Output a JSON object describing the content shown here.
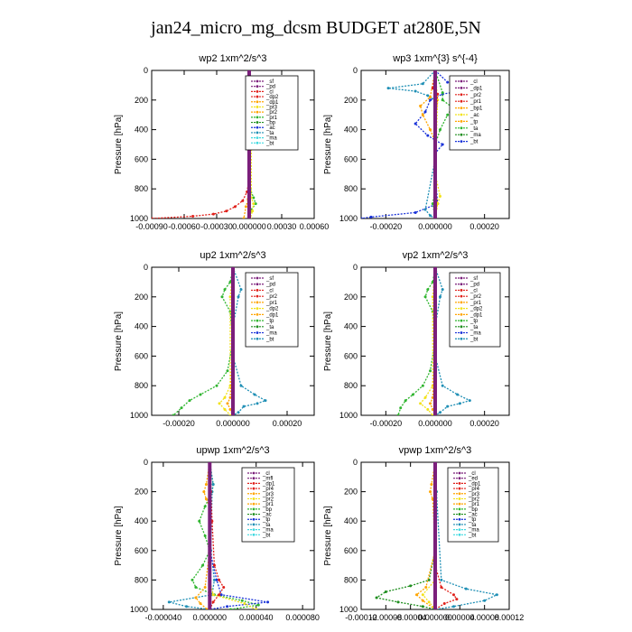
{
  "title": "jan24_micro_mg_dcsm  BUDGET at280E,5N",
  "colors": {
    "purple": "#7b1f7b",
    "red": "#e0201a",
    "orange": "#ffa500",
    "yellow": "#f2e21a",
    "green": "#2fb52f",
    "darkgreen": "#1f8f1f",
    "blue": "#1a33d9",
    "teal": "#1f8fb5",
    "cyan": "#40d9e0"
  },
  "chart_data": [
    {
      "type": "line",
      "title": "wp2  1xm^2/s^3",
      "ylabel": "Pressure [hPa]",
      "ylim": [
        0,
        1000
      ],
      "xlim": [
        -0.0009,
        0.0006
      ],
      "xticks": [
        "-0.00090",
        "-0.00060",
        "-0.00030",
        "0.000000",
        "0.00030",
        "0.00060"
      ],
      "yticks": [
        "0",
        "200",
        "400",
        "600",
        "800",
        "1000"
      ],
      "legend": [
        "_sf",
        "_pd",
        "_cl",
        "_dp2",
        "_dp1",
        "_pr3",
        "_pr2",
        "_pr1",
        "_bp",
        "_ac",
        "_ta",
        "_ma",
        "_bt"
      ],
      "series": [
        {
          "name": "_cl",
          "color": "#e0201a",
          "p": [
            0,
            100,
            200,
            400,
            600,
            750,
            820,
            880,
            920,
            950,
            970,
            985,
            1000
          ],
          "x": [
            0,
            0,
            0,
            0,
            0,
            -5e-06,
            -2e-05,
            -6e-05,
            -0.00013,
            -0.00021,
            -0.00033,
            -0.00052,
            -0.0009
          ]
        },
        {
          "name": "_bp",
          "color": "#2fb52f",
          "p": [
            0,
            100,
            150,
            200,
            300,
            600,
            800,
            860,
            900,
            940,
            1000
          ],
          "x": [
            0,
            2e-05,
            6e-05,
            3e-05,
            1e-05,
            0,
            1e-05,
            4e-05,
            6e-05,
            2e-05,
            0
          ]
        },
        {
          "name": "_pr1",
          "color": "#f2e21a",
          "p": [
            0,
            200,
            860,
            900,
            950,
            1000
          ],
          "x": [
            0,
            2e-05,
            2e-05,
            4e-05,
            3e-05,
            1e-05
          ]
        },
        {
          "name": "_ac",
          "color": "#ffa500",
          "p": [
            0,
            300,
            870,
            920,
            1000
          ],
          "x": [
            0,
            0,
            -1e-05,
            -3e-05,
            -5e-05
          ]
        },
        {
          "name": "_sf",
          "color": "#7b1f7b",
          "p": [
            0,
            1000
          ],
          "x": [
            0,
            0
          ]
        }
      ]
    },
    {
      "type": "line",
      "title": "wp3  1xm^{3} s^{-4}",
      "ylabel": "Pressure [hPa]",
      "ylim": [
        0,
        1000
      ],
      "xlim": [
        -0.0003,
        0.0003
      ],
      "xticks": [
        "-0.00020",
        "0.000000",
        "0.00020"
      ],
      "yticks": [
        "0",
        "200",
        "400",
        "600",
        "800",
        "1000"
      ],
      "legend": [
        "_cl",
        "_dp1",
        "_pr2",
        "_pr1",
        "_bp1",
        "_ac",
        "_tp",
        "_ta",
        "_ma",
        "_bt"
      ],
      "series": [
        {
          "name": "_tp",
          "color": "#1a33d9",
          "p": [
            0,
            80,
            120,
            140,
            160,
            200,
            280,
            360,
            440,
            500,
            560,
            700,
            900,
            960,
            990,
            1000
          ],
          "x": [
            0,
            5e-05,
            0.00016,
            0.0001,
            3e-05,
            -2e-05,
            -4e-05,
            -8e-05,
            -3e-05,
            3e-05,
            0,
            0,
            1e-05,
            -8e-05,
            -0.00026,
            -0.0003
          ]
        },
        {
          "name": "_ta",
          "color": "#1f8fb5",
          "p": [
            0,
            90,
            120,
            140,
            170,
            200,
            600,
            940,
            980,
            1000
          ],
          "x": [
            0,
            -5e-05,
            -0.00019,
            -8e-05,
            -3e-05,
            0,
            0,
            -4e-05,
            -2e-05,
            0
          ]
        },
        {
          "name": "_ac",
          "color": "#2fb52f",
          "p": [
            0,
            150,
            200,
            250,
            300,
            400,
            500,
            600,
            800,
            900,
            1000
          ],
          "x": [
            0,
            3e-05,
            3e-05,
            7e-05,
            5e-05,
            2e-05,
            0,
            0,
            0,
            -1e-05,
            0
          ]
        },
        {
          "name": "_pr1",
          "color": "#ffa500",
          "p": [
            0,
            180,
            240,
            300,
            400,
            480,
            560,
            800,
            900,
            1000
          ],
          "x": [
            0,
            -2e-05,
            -6e-05,
            -5e-05,
            -2e-05,
            0,
            0,
            0,
            1e-05,
            0
          ]
        },
        {
          "name": "_pr2",
          "color": "#f2e21a",
          "p": [
            0,
            200,
            700,
            850,
            900,
            1000
          ],
          "x": [
            0,
            1e-05,
            0,
            2e-05,
            1e-05,
            0
          ]
        },
        {
          "name": "_cl",
          "color": "#e0201a",
          "p": [
            0,
            120,
            160,
            400,
            1000
          ],
          "x": [
            0,
            -1e-05,
            1e-05,
            0,
            0
          ]
        },
        {
          "name": "_dp1",
          "color": "#7b1f7b",
          "p": [
            0,
            1000
          ],
          "x": [
            0,
            0
          ]
        }
      ]
    },
    {
      "type": "line",
      "title": "up2  1xm^2/s^3",
      "ylabel": "Pressure [hPa]",
      "ylim": [
        0,
        1000
      ],
      "xlim": [
        -0.0003,
        0.0003
      ],
      "xticks": [
        "-0.00020",
        "0.000000",
        "0.00020"
      ],
      "yticks": [
        "0",
        "200",
        "400",
        "600",
        "800",
        "1000"
      ],
      "legend": [
        "_sf",
        "_pd",
        "_cl",
        "_pr2",
        "_pr1",
        "_dp2",
        "_dp1",
        "_tp",
        "_ta",
        "_ma",
        "_bt"
      ],
      "series": [
        {
          "name": "_dp2",
          "color": "#2fb52f",
          "p": [
            0,
            100,
            150,
            200,
            300,
            500,
            700,
            800,
            860,
            900,
            950,
            1000
          ],
          "x": [
            0,
            -1e-05,
            -3e-05,
            -4e-05,
            -1e-05,
            0,
            -2e-05,
            -6e-05,
            -0.00012,
            -0.00016,
            -0.00019,
            -0.00022
          ]
        },
        {
          "name": "_ta",
          "color": "#1f8fb5",
          "p": [
            0,
            150,
            200,
            400,
            600,
            800,
            860,
            900,
            920,
            940,
            980,
            1000
          ],
          "x": [
            0,
            3e-05,
            2e-05,
            0,
            0,
            3e-05,
            8e-05,
            0.00012,
            9e-05,
            4e-05,
            2e-05,
            0
          ]
        },
        {
          "name": "_pr1",
          "color": "#f2e21a",
          "p": [
            0,
            200,
            800,
            880,
            920,
            960,
            1000
          ],
          "x": [
            0,
            -1e-05,
            -1e-05,
            -3e-05,
            -5e-05,
            -3e-05,
            -1e-05
          ]
        },
        {
          "name": "_pr2",
          "color": "#ffa500",
          "p": [
            0,
            500,
            880,
            920,
            960,
            1000
          ],
          "x": [
            0,
            0,
            -1e-05,
            -2e-05,
            -1e-05,
            0
          ]
        },
        {
          "name": "_cl",
          "color": "#e0201a",
          "p": [
            0,
            1000
          ],
          "x": [
            0,
            0
          ]
        },
        {
          "name": "_sf",
          "color": "#7b1f7b",
          "p": [
            0,
            1000
          ],
          "x": [
            0,
            0
          ]
        }
      ]
    },
    {
      "type": "line",
      "title": "vp2  1xm^2/s^3",
      "ylabel": "Pressure [hPa]",
      "ylim": [
        0,
        1000
      ],
      "xlim": [
        -0.0003,
        0.0003
      ],
      "xticks": [
        "-0.00020",
        "0.000000",
        "0.00020"
      ],
      "yticks": [
        "0",
        "200",
        "400",
        "600",
        "800",
        "1000"
      ],
      "legend": [
        "_sf",
        "_pd",
        "_cl",
        "_pr2",
        "_pr1",
        "_dp2",
        "_dp1",
        "_tp",
        "_ta",
        "_ma",
        "_bt"
      ],
      "series": [
        {
          "name": "_dp2",
          "color": "#2fb52f",
          "p": [
            0,
            100,
            150,
            200,
            300,
            500,
            700,
            800,
            860,
            900,
            950,
            1000
          ],
          "x": [
            0,
            -1e-05,
            -3e-05,
            -4e-05,
            -1e-05,
            0,
            -2e-05,
            -5e-05,
            -9e-05,
            -0.00012,
            -0.00014,
            -0.00015
          ]
        },
        {
          "name": "_ta",
          "color": "#1f8fb5",
          "p": [
            0,
            150,
            200,
            400,
            600,
            800,
            860,
            900,
            920,
            940,
            980,
            1000
          ],
          "x": [
            0,
            3e-05,
            2e-05,
            0,
            0,
            3e-05,
            9e-05,
            0.00014,
            0.0001,
            5e-05,
            2e-05,
            0
          ]
        },
        {
          "name": "_pr1",
          "color": "#f2e21a",
          "p": [
            0,
            200,
            800,
            880,
            920,
            960,
            1000
          ],
          "x": [
            0,
            -1e-05,
            -1e-05,
            -4e-05,
            -6e-05,
            -3e-05,
            -1e-05
          ]
        },
        {
          "name": "_pr2",
          "color": "#ffa500",
          "p": [
            0,
            500,
            880,
            920,
            960,
            1000
          ],
          "x": [
            0,
            0,
            -1e-05,
            -2e-05,
            -1e-05,
            0
          ]
        },
        {
          "name": "_cl",
          "color": "#e0201a",
          "p": [
            0,
            1000
          ],
          "x": [
            0,
            0
          ]
        },
        {
          "name": "_sf",
          "color": "#7b1f7b",
          "p": [
            0,
            1000
          ],
          "x": [
            0,
            0
          ]
        }
      ]
    },
    {
      "type": "line",
      "title": "upwp  1xm^2/s^3",
      "ylabel": "Pressure [hPa]",
      "ylim": [
        0,
        1000
      ],
      "xlim": [
        -5e-05,
        9e-05
      ],
      "xticks": [
        "-0.000040",
        "0.000000",
        "0.000040",
        "0.000080"
      ],
      "yticks": [
        "0",
        "200",
        "400",
        "600",
        "800",
        "1000"
      ],
      "legend": [
        "_cl",
        "_mfl",
        "_dp1",
        "_pr4",
        "_pr3",
        "_pr2",
        "_pr1",
        "_bp",
        "_ac",
        "_tp",
        "_ta",
        "_ma",
        "_bt"
      ],
      "series": [
        {
          "name": "_bp",
          "color": "#2fb52f",
          "p": [
            0,
            150,
            200,
            300,
            400,
            500,
            600,
            700,
            800,
            850,
            900,
            940,
            970,
            1000
          ],
          "x": [
            0,
            3e-06,
            2e-06,
            -4e-06,
            -9e-06,
            -4e-06,
            0,
            -6e-06,
            -1.5e-05,
            -1.2e-05,
            4e-06,
            2.8e-05,
            4.2e-05,
            1.8e-05
          ]
        },
        {
          "name": "_ta",
          "color": "#1f8fb5",
          "p": [
            0,
            150,
            200,
            600,
            800,
            900,
            950,
            980,
            1000
          ],
          "x": [
            0,
            3e-06,
            2e-06,
            1e-06,
            4e-06,
            2e-06,
            -3.5e-05,
            -2e-05,
            0
          ]
        },
        {
          "name": "_dp1",
          "color": "#1a33d9",
          "p": [
            0,
            600,
            800,
            900,
            950,
            980,
            1000
          ],
          "x": [
            0,
            0,
            6e-06,
            1e-05,
            5e-05,
            1.5e-05,
            0
          ]
        },
        {
          "name": "_pr1",
          "color": "#ffa500",
          "p": [
            0,
            150,
            200,
            250,
            300,
            600,
            850,
            920,
            960,
            1000
          ],
          "x": [
            0,
            -3e-06,
            -5e-06,
            -3e-06,
            0,
            0,
            -4e-06,
            -1.2e-05,
            -8e-06,
            -2e-06
          ]
        },
        {
          "name": "_pr2",
          "color": "#f2e21a",
          "p": [
            0,
            800,
            900,
            960,
            1000
          ],
          "x": [
            0,
            0,
            3e-06,
            3e-05,
            4e-05
          ]
        },
        {
          "name": "_cl",
          "color": "#e0201a",
          "p": [
            0,
            200,
            400,
            700,
            800,
            850,
            900,
            950,
            1000
          ],
          "x": [
            0,
            1e-06,
            2e-06,
            4e-06,
            8e-06,
            1.2e-05,
            8e-06,
            3e-06,
            0
          ]
        },
        {
          "name": "_mfl",
          "color": "#7b1f7b",
          "p": [
            0,
            1000
          ],
          "x": [
            0,
            0
          ]
        }
      ]
    },
    {
      "type": "line",
      "title": "vpwp  1xm^2/s^3",
      "ylabel": "Pressure [hPa]",
      "ylim": [
        0,
        1000
      ],
      "xlim": [
        -0.00012,
        0.00012
      ],
      "xticks": [
        "-0.00012",
        "-0.00008",
        "-0.00004",
        "0.000000",
        "0.00004",
        "0.00008",
        "0.00012"
      ],
      "yticks": [
        "0",
        "200",
        "400",
        "600",
        "800",
        "1000"
      ],
      "legend": [
        "_cl",
        "_ed",
        "_dp1",
        "_pr4",
        "_pr3",
        "_pr2",
        "_pr1",
        "_bp",
        "_ac",
        "_tp",
        "_ta",
        "_ma",
        "_bt"
      ],
      "series": [
        {
          "name": "_bp",
          "color": "#1f8f1f",
          "p": [
            0,
            200,
            600,
            800,
            840,
            880,
            920,
            950,
            980,
            1000
          ],
          "x": [
            0,
            2e-06,
            0,
            -1e-05,
            -4e-05,
            -8e-05,
            -9.5e-05,
            -6e-05,
            -2e-05,
            0
          ]
        },
        {
          "name": "_tp",
          "color": "#1f8fb5",
          "p": [
            0,
            200,
            800,
            860,
            900,
            940,
            980,
            1000
          ],
          "x": [
            0,
            2e-06,
            1e-05,
            5e-05,
            0.0001,
            8e-05,
            3e-05,
            0
          ]
        },
        {
          "name": "_pr1",
          "color": "#ffa500",
          "p": [
            0,
            150,
            200,
            250,
            600,
            850,
            900,
            940,
            1000
          ],
          "x": [
            0,
            -6e-06,
            -8e-06,
            -4e-06,
            0,
            -1.5e-05,
            -3e-05,
            -2e-05,
            0
          ]
        },
        {
          "name": "_pr2",
          "color": "#f2e21a",
          "p": [
            0,
            800,
            900,
            950,
            1000
          ],
          "x": [
            0,
            0,
            -2e-05,
            -1e-05,
            0
          ]
        },
        {
          "name": "_cl",
          "color": "#e0201a",
          "p": [
            0,
            700,
            850,
            900,
            930,
            960,
            1000
          ],
          "x": [
            0,
            0,
            1e-05,
            3e-05,
            3.5e-05,
            1.5e-05,
            0
          ]
        },
        {
          "name": "_ed",
          "color": "#7b1f7b",
          "p": [
            0,
            1000
          ],
          "x": [
            0,
            0
          ]
        }
      ]
    }
  ]
}
